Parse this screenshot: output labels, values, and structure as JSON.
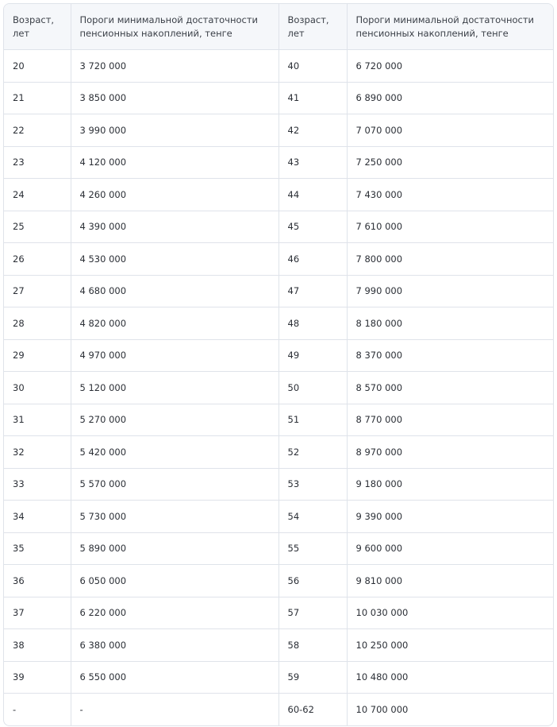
{
  "table": {
    "headers": [
      "Возраст, лет",
      "Пороги минимальной достаточности пенсионных накоплений, тенге",
      "Возраст, лет",
      "Пороги минимальной достаточности пенсионных накоплений, тенге"
    ],
    "header_lines": [
      [
        "Возраст,",
        "лет"
      ],
      [
        "Пороги минимальной достаточности",
        "пенсионных накоплений, тенге"
      ],
      [
        "Возраст,",
        "лет"
      ],
      [
        "Пороги минимальной достаточности",
        "пенсионных накоплений, тенге"
      ]
    ],
    "rows": [
      [
        "20",
        "3 720 000",
        "40",
        "6 720 000"
      ],
      [
        "21",
        "3 850 000",
        "41",
        "6 890 000"
      ],
      [
        "22",
        "3 990 000",
        "42",
        "7 070 000"
      ],
      [
        "23",
        "4 120 000",
        "43",
        "7 250 000"
      ],
      [
        "24",
        "4 260 000",
        "44",
        "7 430 000"
      ],
      [
        "25",
        "4 390 000",
        "45",
        "7 610 000"
      ],
      [
        "26",
        "4 530 000",
        "46",
        "7 800 000"
      ],
      [
        "27",
        "4 680 000",
        "47",
        "7 990 000"
      ],
      [
        "28",
        "4 820 000",
        "48",
        "8 180 000"
      ],
      [
        "29",
        "4 970 000",
        "49",
        "8 370 000"
      ],
      [
        "30",
        "5 120 000",
        "50",
        "8 570 000"
      ],
      [
        "31",
        "5 270 000",
        "51",
        "8 770 000"
      ],
      [
        "32",
        "5 420 000",
        "52",
        "8 970 000"
      ],
      [
        "33",
        "5 570 000",
        "53",
        "9 180 000"
      ],
      [
        "34",
        "5 730 000",
        "54",
        "9 390 000"
      ],
      [
        "35",
        "5 890 000",
        "55",
        "9 600 000"
      ],
      [
        "36",
        "6 050 000",
        "56",
        "9 810 000"
      ],
      [
        "37",
        "6 220 000",
        "57",
        "10 030 000"
      ],
      [
        "38",
        "6 380 000",
        "58",
        "10 250 000"
      ],
      [
        "39",
        "6 550 000",
        "59",
        "10 480 000"
      ],
      [
        "-",
        "-",
        "60-62",
        "10 700 000"
      ]
    ]
  },
  "colors": {
    "header_bg": "#f5f7fa",
    "border": "#dfe3ea",
    "text": "#2b2f36"
  }
}
